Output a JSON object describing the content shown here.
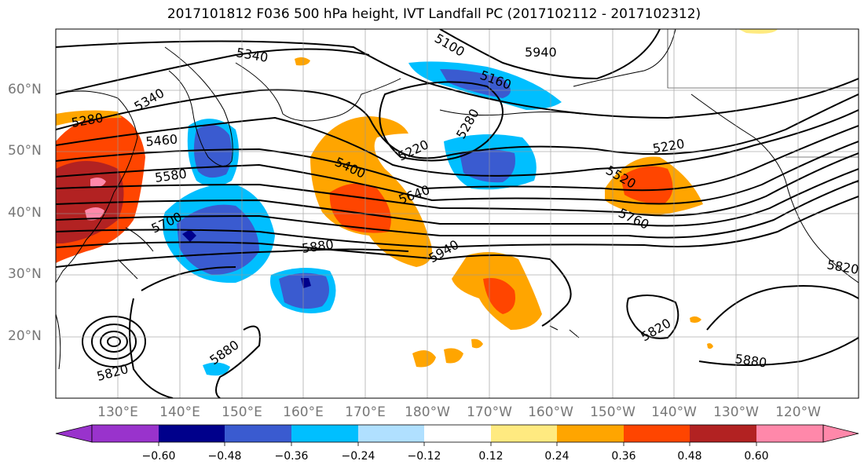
{
  "title": "2017101812 F036 500 hPa height, IVT Landfall PC (2017102112 - 2017102312)",
  "lat_labels": [
    "60°N",
    "50°N",
    "40°N",
    "30°N",
    "20°N"
  ],
  "lon_labels": [
    "130°E",
    "140°E",
    "150°E",
    "160°E",
    "170°E",
    "180°W",
    "170°W",
    "160°W",
    "150°W",
    "140°W",
    "130°W",
    "120°W"
  ],
  "contour_labels": [
    "5340",
    "5280",
    "5340",
    "5460",
    "5580",
    "5700",
    "5100",
    "5940",
    "5160",
    "5280",
    "5220",
    "5400",
    "5640",
    "5880",
    "5940",
    "5220",
    "5520",
    "5760",
    "5820",
    "5820",
    "5880",
    "5880",
    "5820"
  ],
  "colorbar": {
    "tick_labels": [
      "−0.60",
      "−0.48",
      "−0.36",
      "−0.24",
      "−0.12",
      "0.12",
      "0.24",
      "0.36",
      "0.48",
      "0.60"
    ],
    "colors": [
      "#9933cc",
      "#00008b",
      "#3a5bd0",
      "#00bfff",
      "#b0e0ff",
      "#ffffff",
      "#ffea80",
      "#ffa500",
      "#ff4500",
      "#b22222",
      "#ff88aa"
    ]
  }
}
